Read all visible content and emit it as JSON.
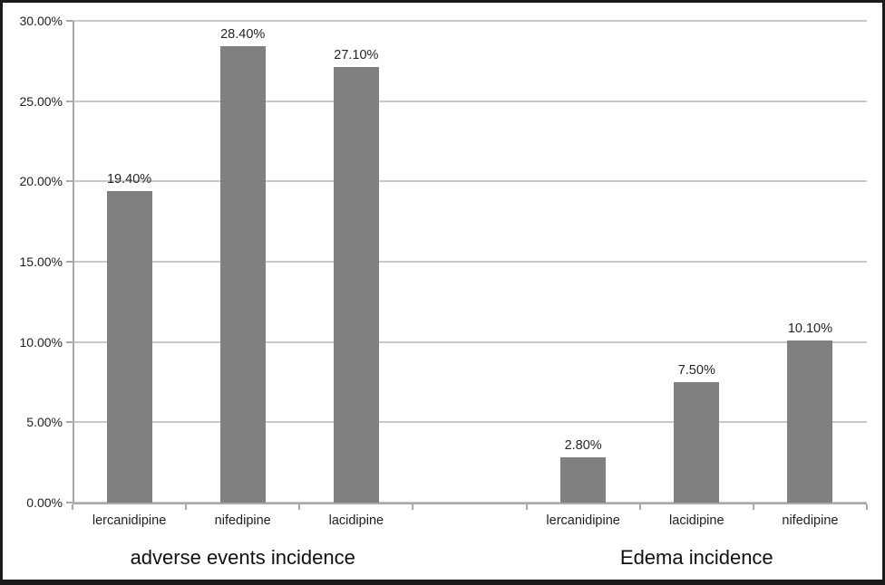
{
  "chart_data": {
    "type": "bar",
    "title": "",
    "xlabel": "",
    "ylabel": "",
    "ylim": [
      0,
      30
    ],
    "ytick_step": 5,
    "ytick_labels": [
      "0.00%",
      "5.00%",
      "10.00%",
      "15.00%",
      "20.00%",
      "25.00%",
      "30.00%"
    ],
    "grid": true,
    "legend": "none",
    "bar_color": "#808080",
    "gridline_color": "#c9c9c9",
    "axis_color": "#a8a8a8",
    "groups": [
      {
        "label": "adverse events incidence",
        "categories": [
          "lercanidipine",
          "nifedipine",
          "lacidipine"
        ],
        "values": [
          19.4,
          28.4,
          27.1
        ],
        "value_labels": [
          "19.40%",
          "28.40%",
          "27.10%"
        ]
      },
      {
        "label": "Edema incidence",
        "categories": [
          "lercanidipine",
          "lacidipine",
          "nifedipine"
        ],
        "values": [
          2.8,
          7.5,
          10.1
        ],
        "value_labels": [
          "2.80%",
          "7.50%",
          "10.10%"
        ]
      }
    ],
    "gap_slots_between_groups": 1
  }
}
